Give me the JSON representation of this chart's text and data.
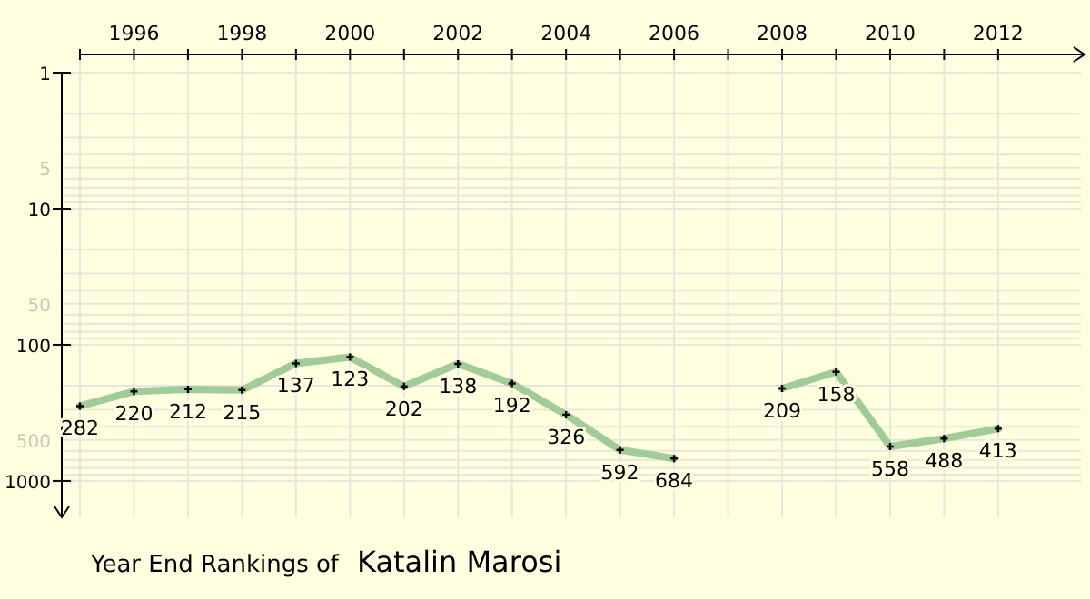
{
  "chart_data": {
    "type": "line",
    "title": "Year End Rankings of",
    "subtitle": "Katalin Marosi",
    "x": [
      1995,
      1996,
      1997,
      1998,
      1999,
      2000,
      2001,
      2002,
      2003,
      2004,
      2005,
      2006,
      2007,
      2008,
      2009,
      2010,
      2011,
      2012
    ],
    "series": [
      {
        "color": "#a0cc98",
        "values": [
          282,
          220,
          212,
          215,
          137,
          123,
          202,
          138,
          192,
          326,
          592,
          684,
          null,
          209,
          158,
          558,
          488,
          413
        ]
      }
    ],
    "xlim": [
      1995,
      2013.6
    ],
    "xticks": [
      {
        "value": 1995,
        "label": null
      },
      1996,
      {
        "value": 1997,
        "label": null
      },
      1998,
      {
        "value": 1999,
        "label": null
      },
      2000,
      {
        "value": 2001,
        "label": null
      },
      2002,
      {
        "value": 2003,
        "label": null
      },
      2004,
      {
        "value": 2005,
        "label": null
      },
      2006,
      {
        "value": 2007,
        "label": null
      },
      2008,
      {
        "value": 2009,
        "label": null
      },
      2010,
      {
        "value": 2011,
        "label": null
      },
      2012
    ],
    "ylim": [
      1850,
      1
    ],
    "yticks": [
      1,
      5,
      10,
      50,
      100,
      500,
      1000
    ],
    "log": true,
    "grid": true,
    "data_labels": true,
    "marker": "cross",
    "line_style": "solid"
  }
}
